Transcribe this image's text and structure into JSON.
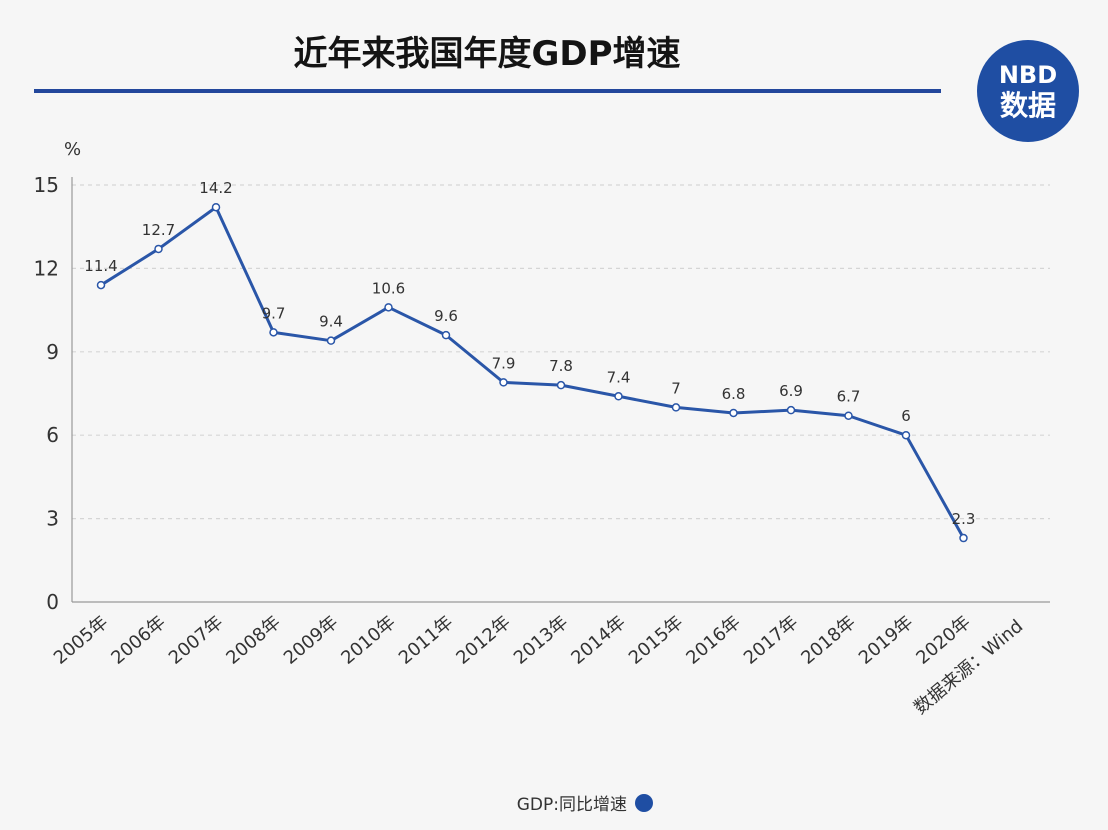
{
  "title": "近年来我国年度GDP增速",
  "logo": {
    "line1": "NBD",
    "line2": "数据",
    "bg": "#1f4ea3"
  },
  "source": "数据来源：Wind",
  "colors": {
    "line": "#2a56a8",
    "title_rule": "#23479c",
    "grid": "#d5d5d5"
  },
  "chart_data": {
    "type": "line",
    "unit": "%",
    "x": [
      "2005年",
      "2006年",
      "2007年",
      "2008年",
      "2009年",
      "2010年",
      "2011年",
      "2012年",
      "2013年",
      "2014年",
      "2015年",
      "2016年",
      "2017年",
      "2018年",
      "2019年",
      "2020年"
    ],
    "series": [
      {
        "name": "GDP:同比增速",
        "values": [
          11.4,
          12.7,
          14.2,
          9.7,
          9.4,
          10.6,
          9.6,
          7.9,
          7.8,
          7.4,
          7,
          6.8,
          6.9,
          6.7,
          6,
          2.3
        ]
      }
    ],
    "data_labels": [
      "11.4",
      "12.7",
      "14.2",
      "9.7",
      "9.4",
      "10.6",
      "9.6",
      "7.9",
      "7.8",
      "7.4",
      "7",
      "6.8",
      "6.9",
      "6.7",
      "6",
      "2.3"
    ],
    "ylim": [
      0,
      15
    ],
    "yticks": [
      "0",
      "3",
      "6",
      "9",
      "12",
      "15"
    ],
    "grid": true,
    "legend": "bottom-center",
    "legend_label": "GDP:同比增速"
  }
}
